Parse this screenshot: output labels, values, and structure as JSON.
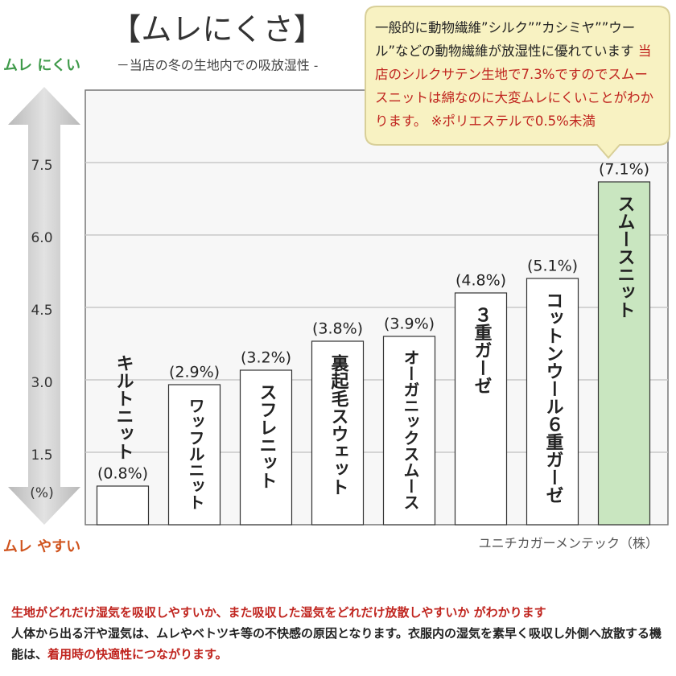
{
  "title": "【ムレにくさ】",
  "subtitle": "－当店の冬の生地内での吸放湿性 -",
  "callout": {
    "text": "一般的に動物繊維”シルク””カシミヤ””ウール”などの動物繊維が放湿性に優れています ",
    "highlight": "当店のシルクサテン生地で7.3%ですのでスムースニットは綿なのに大変ムレにくいことがわかります。",
    "note": "※ポリエステルで0.5%未満"
  },
  "top_label": "ムレ にくい",
  "bottom_label": "ムレ やすい",
  "source": "ユニチカガーメンテック（株）",
  "footer": {
    "line1": "生地がどれだけ湿気を吸収しやすいか、また吸収した湿気をどれだけ放散しやすいか がわかります",
    "line2": "人体から出る汗や湿気は、ムレやベトツキ等の不快感の原因となります。衣服内の湿気を素早く吸収し外側へ放散する機能は、",
    "line2_highlight": "着用時の快適性につながります。"
  },
  "chart_data": {
    "type": "bar",
    "y_unit": "(%)",
    "categories": [
      "キルトニット",
      "ワッフルニット",
      "スフレニット",
      "裏起毛スウェット",
      "オーガニックスムース",
      "３重ガーゼ",
      "コットンウール６重ガーゼ",
      "スムースニット"
    ],
    "values": [
      0.8,
      2.9,
      3.2,
      3.8,
      3.9,
      4.8,
      5.1,
      7.1
    ],
    "value_labels": [
      "(0.8%)",
      "(2.9%)",
      "(3.2%)",
      "(3.8%)",
      "(3.9%)",
      "(4.8%)",
      "(5.1%)",
      "(7.1%)"
    ],
    "colors": [
      "#ffffff",
      "#ffffff",
      "#ffffff",
      "#ffffff",
      "#ffffff",
      "#ffffff",
      "#ffffff",
      "#c9e6c0"
    ],
    "ylim": [
      0,
      9
    ],
    "yticks": [
      1.5,
      {
        "value": 3,
        "label": "3.0"
      },
      4.5,
      {
        "value": 6,
        "label": "6.0"
      },
      7.5
    ],
    "grid": true
  }
}
